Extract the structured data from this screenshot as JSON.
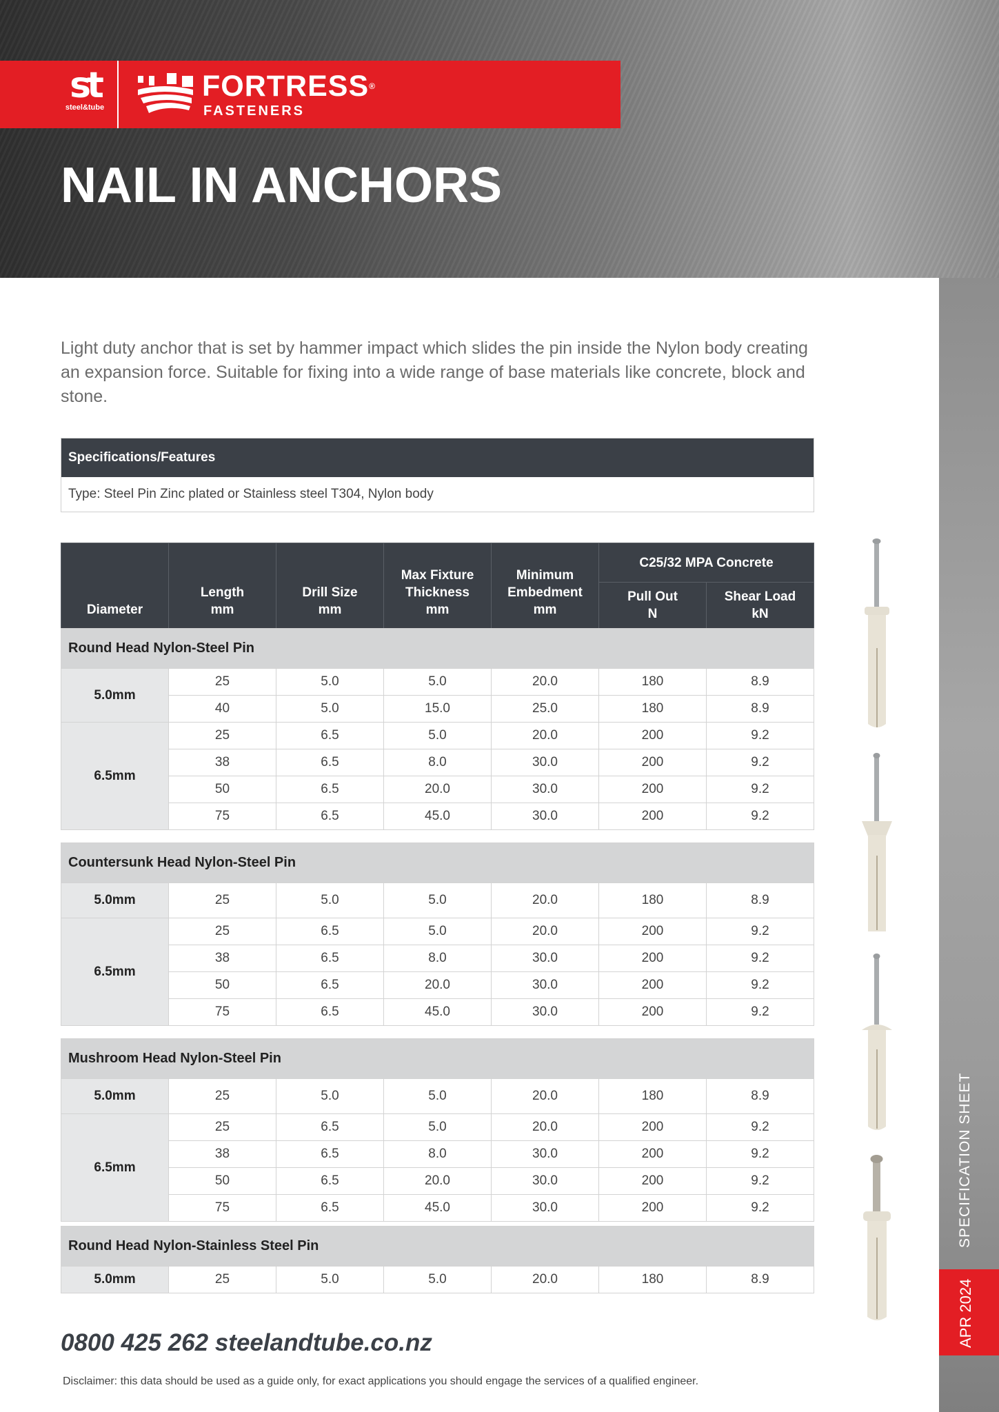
{
  "brand": {
    "parent_logo_text": "st",
    "parent_name": "steel&tube",
    "name": "FORTRESS",
    "registered": "®",
    "sub": "FASTENERS",
    "red": "#e31e24",
    "dark": "#3b4047"
  },
  "title": "NAIL IN ANCHORS",
  "description": "Light duty anchor that is set by hammer impact which slides the pin inside the Nylon body creating an expansion force. Suitable for fixing into a wide range of base materials like concrete, block and stone.",
  "specs": {
    "header": "Specifications/Features",
    "type": "Type: Steel Pin Zinc plated or Stainless steel T304, Nylon body"
  },
  "table": {
    "headers": {
      "diameter": "Diameter",
      "length": [
        "Length",
        "mm"
      ],
      "drill": [
        "Drill Size",
        "mm"
      ],
      "fixture": [
        "Max Fixture",
        "Thickness",
        "mm"
      ],
      "embed": [
        "Minimum",
        "Embedment",
        "mm"
      ],
      "group": "C25/32 MPA Concrete",
      "pull": [
        "Pull Out",
        "N"
      ],
      "shear": [
        "Shear Load",
        "kN"
      ]
    },
    "sections": [
      {
        "title": "Round Head Nylon-Steel Pin",
        "groups": [
          {
            "diameter": "5.0mm",
            "rows": [
              [
                "25",
                "5.0",
                "5.0",
                "20.0",
                "180",
                "8.9"
              ],
              [
                "40",
                "5.0",
                "15.0",
                "25.0",
                "180",
                "8.9"
              ]
            ]
          },
          {
            "diameter": "6.5mm",
            "rows": [
              [
                "25",
                "6.5",
                "5.0",
                "20.0",
                "200",
                "9.2"
              ],
              [
                "38",
                "6.5",
                "8.0",
                "30.0",
                "200",
                "9.2"
              ],
              [
                "50",
                "6.5",
                "20.0",
                "30.0",
                "200",
                "9.2"
              ],
              [
                "75",
                "6.5",
                "45.0",
                "30.0",
                "200",
                "9.2"
              ]
            ]
          }
        ]
      },
      {
        "title": "Countersunk Head Nylon-Steel Pin",
        "groups": [
          {
            "diameter": "5.0mm",
            "rows": [
              [
                "25",
                "5.0",
                "5.0",
                "20.0",
                "180",
                "8.9"
              ]
            ]
          },
          {
            "diameter": "6.5mm",
            "rows": [
              [
                "25",
                "6.5",
                "5.0",
                "20.0",
                "200",
                "9.2"
              ],
              [
                "38",
                "6.5",
                "8.0",
                "30.0",
                "200",
                "9.2"
              ],
              [
                "50",
                "6.5",
                "20.0",
                "30.0",
                "200",
                "9.2"
              ],
              [
                "75",
                "6.5",
                "45.0",
                "30.0",
                "200",
                "9.2"
              ]
            ]
          }
        ]
      },
      {
        "title": "Mushroom Head Nylon-Steel Pin",
        "groups": [
          {
            "diameter": "5.0mm",
            "rows": [
              [
                "25",
                "5.0",
                "5.0",
                "20.0",
                "180",
                "8.9"
              ]
            ]
          },
          {
            "diameter": "6.5mm",
            "rows": [
              [
                "25",
                "6.5",
                "5.0",
                "20.0",
                "200",
                "9.2"
              ],
              [
                "38",
                "6.5",
                "8.0",
                "30.0",
                "200",
                "9.2"
              ],
              [
                "50",
                "6.5",
                "20.0",
                "30.0",
                "200",
                "9.2"
              ],
              [
                "75",
                "6.5",
                "45.0",
                "30.0",
                "200",
                "9.2"
              ]
            ]
          }
        ]
      },
      {
        "title": "Round Head Nylon-Stainless Steel Pin",
        "groups": [
          {
            "diameter": "5.0mm",
            "rows": [
              [
                "25",
                "5.0",
                "5.0",
                "20.0",
                "180",
                "8.9"
              ]
            ]
          }
        ]
      }
    ]
  },
  "product_images": [
    "round-head-anchor",
    "countersunk-head-anchor",
    "mushroom-head-anchor",
    "round-head-stainless-anchor"
  ],
  "footer": {
    "contact": "0800 425 262  steelandtube.co.nz",
    "disclaimer": "Disclaimer: this data should be used as a guide only, for exact applications you should engage the services of a qualified engineer."
  },
  "side": {
    "label": "SPECIFICATION SHEET",
    "date": "APR 2024"
  }
}
